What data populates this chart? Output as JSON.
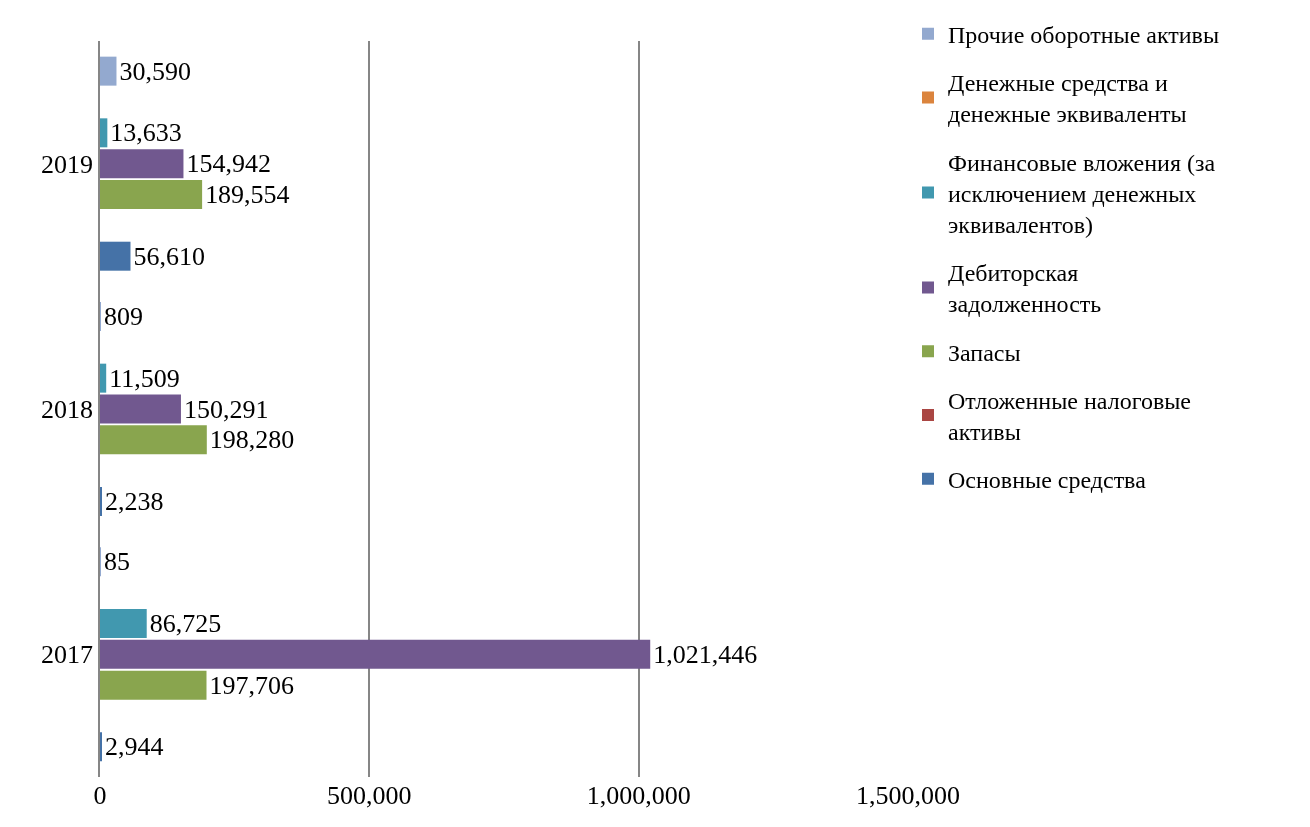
{
  "chart_data": {
    "type": "bar",
    "orientation": "horizontal",
    "categories": [
      "2019",
      "2018",
      "2017"
    ],
    "series": [
      {
        "name": "Основные средства",
        "color": "#4572a7",
        "values": [
          56610,
          2238,
          2944
        ],
        "value_labels": [
          "56,610",
          "2,238",
          "2,944"
        ]
      },
      {
        "name": "Отложенные налоговые активы",
        "color": "#aa4643",
        "values": [
          null,
          null,
          null
        ],
        "value_labels": [
          null,
          null,
          null
        ]
      },
      {
        "name": "Запасы",
        "color": "#89a54e",
        "values": [
          189554,
          198280,
          197706
        ],
        "value_labels": [
          "189,554",
          "198,280",
          "197,706"
        ]
      },
      {
        "name": "Дебиторская задолженность",
        "color": "#71588f",
        "values": [
          154942,
          150291,
          1021446
        ],
        "value_labels": [
          "154,942",
          "150,291",
          "1,021,446"
        ]
      },
      {
        "name": "Финансовые вложения (за исключением денежных эквивалентов)",
        "color": "#4198af",
        "values": [
          13633,
          11509,
          86725
        ],
        "value_labels": [
          "13,633",
          "11,509",
          "86,725"
        ]
      },
      {
        "name": "Денежные средства и денежные эквиваленты",
        "color": "#db843d",
        "values": [
          null,
          null,
          null
        ],
        "value_labels": [
          null,
          null,
          null
        ]
      },
      {
        "name": "Прочие оборотные активы",
        "color": "#93a9cf",
        "values": [
          30590,
          809,
          85
        ],
        "value_labels": [
          "30,590",
          "809",
          "85"
        ]
      }
    ],
    "xlim": [
      0,
      1500000
    ],
    "xticks": [
      {
        "value": 0,
        "label": "0"
      },
      {
        "value": 500000,
        "label": "500,000"
      },
      {
        "value": 1000000,
        "label": "1,000,000"
      },
      {
        "value": 1500000,
        "label": "1,500,000"
      }
    ],
    "grid": "x",
    "legend": "right"
  }
}
